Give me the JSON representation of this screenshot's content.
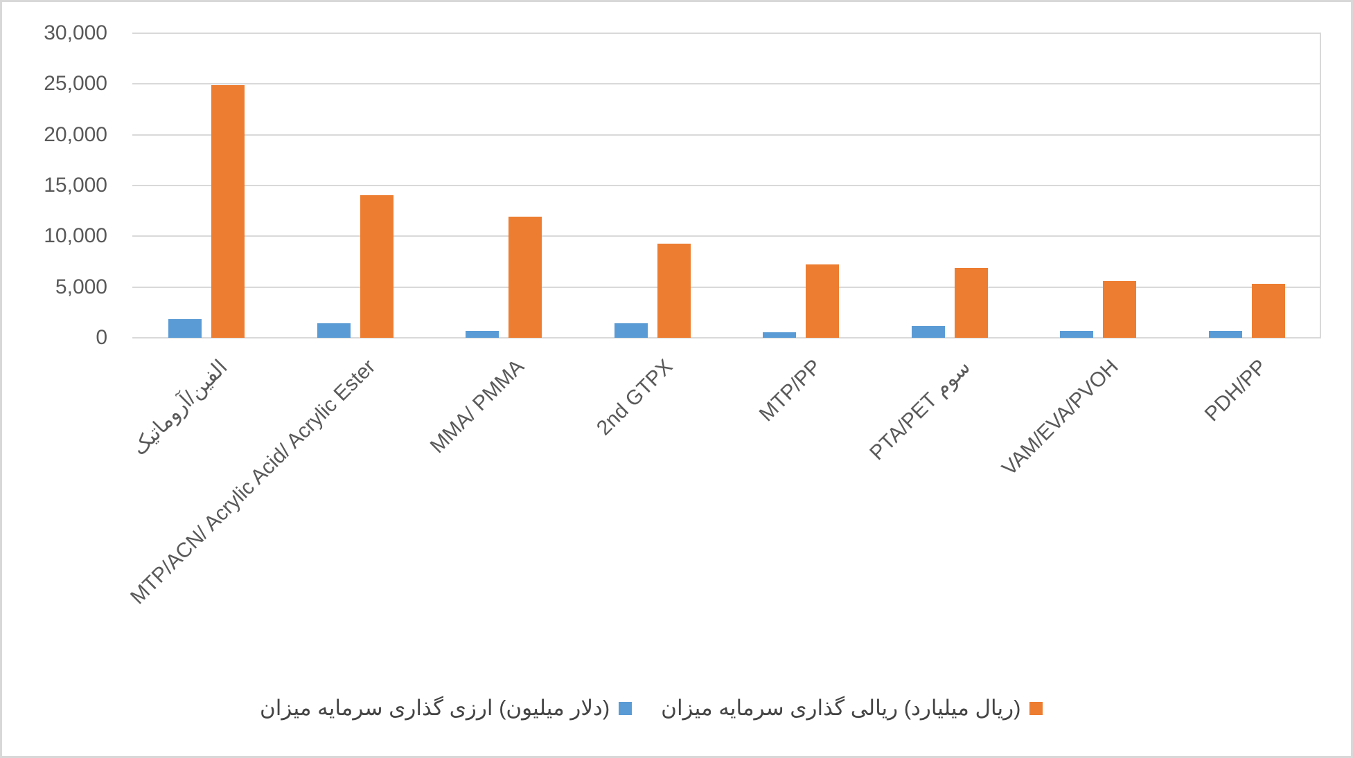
{
  "chart_data": {
    "type": "bar",
    "title": "",
    "xlabel": "",
    "ylabel": "",
    "categories": [
      "الفین/آروماتیک",
      "MTP/ACN/ Acrylic Acid/ Acrylic Ester",
      "MMA/ PMMA",
      "2nd GTPX",
      "MTP/PP",
      "PTA/PET سوم",
      "VAM/EVA/PVOH",
      "PDH/PP"
    ],
    "series": [
      {
        "name": "میزان سرمایه گذاری ارزی (میلیون دلار)",
        "color": "#5B9BD5",
        "values": [
          1850,
          1400,
          650,
          1450,
          520,
          1190,
          650,
          650
        ]
      },
      {
        "name": "میزان سرمایه گذاری ریالی (میلیارد ریال)",
        "color": "#ED7D31",
        "values": [
          24900,
          14050,
          11900,
          9300,
          7250,
          6870,
          5570,
          5300
        ]
      }
    ],
    "ylim": [
      0,
      30000
    ],
    "ytick_step": 5000,
    "ytick_labels": [
      "0",
      "5,000",
      "10,000",
      "15,000",
      "20,000",
      "25,000",
      "30,000"
    ],
    "grid": true,
    "legend_position": "bottom"
  },
  "colors": {
    "gridline": "#d9d9d9",
    "axis_text": "#595959",
    "legend_text": "#444444",
    "chart_border": "#d8d8d8",
    "background": "#ffffff"
  }
}
